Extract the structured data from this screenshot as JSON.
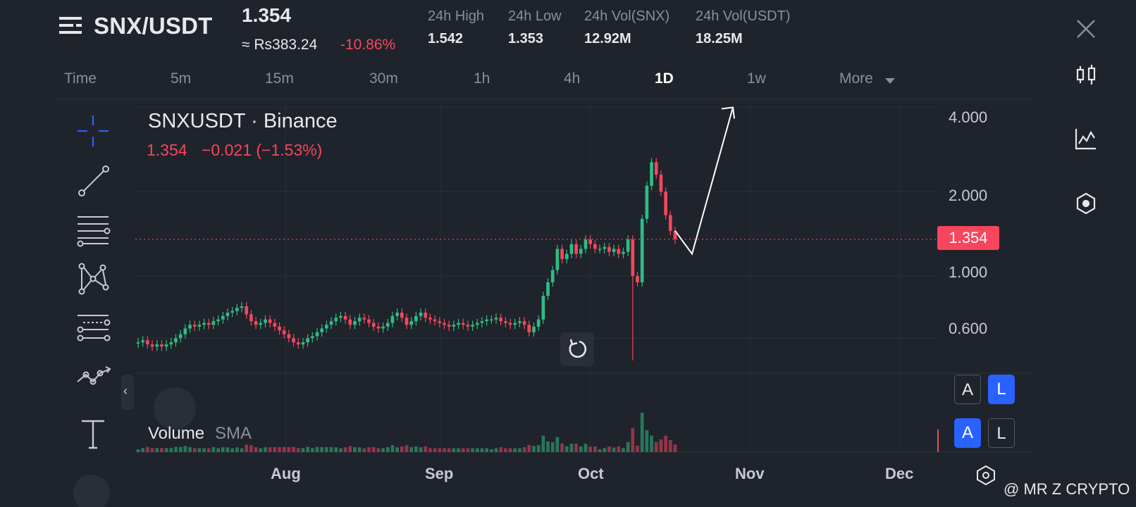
{
  "header": {
    "pair": "SNX/USDT",
    "last_price": "1.354",
    "approx_value": "≈ Rs383.24",
    "change_percent": "-10.86%",
    "stats": [
      {
        "label": "24h High",
        "value": "1.542"
      },
      {
        "label": "24h Low",
        "value": "1.353"
      },
      {
        "label": "24h Vol(SNX)",
        "value": "12.92M"
      },
      {
        "label": "24h Vol(USDT)",
        "value": "18.25M"
      }
    ]
  },
  "intervals": [
    "Time",
    "5m",
    "15m",
    "30m",
    "1h",
    "4h",
    "1D",
    "1w",
    "More"
  ],
  "active_interval": "1D",
  "toolbar": {
    "tools": [
      "crosshair-icon",
      "trend-line-icon",
      "horizontal-lines-icon",
      "pattern-icon",
      "fib-icon",
      "path-icon",
      "text-icon"
    ],
    "collapse": "‹"
  },
  "side_icons": [
    "close-icon",
    "candlestick-icon",
    "indicator-icon",
    "settings-hex-icon"
  ],
  "chart": {
    "symbol": "SNXUSDT · Binance",
    "price": "1.354",
    "change": "−0.021 (−1.53%)",
    "volume_label": "Volume",
    "sma_label": "SMA",
    "price_tag": "1.354",
    "auto_log_top": {
      "a": "A",
      "l": "L"
    },
    "auto_log_bottom": {
      "a": "A",
      "l": "L"
    }
  },
  "chart_data": {
    "type": "candlestick",
    "title": "SNXUSDT · Binance",
    "yscale": "log",
    "ylim": [
      0.45,
      4.3
    ],
    "y_ticks": [
      "4.000",
      "2.000",
      "1.000",
      "0.600"
    ],
    "x_ticks": [
      "Aug",
      "Sep",
      "Oct",
      "Nov",
      "Dec"
    ],
    "last_price": 1.354,
    "closes": [
      0.58,
      0.59,
      0.57,
      0.56,
      0.57,
      0.56,
      0.57,
      0.58,
      0.6,
      0.62,
      0.65,
      0.67,
      0.66,
      0.67,
      0.68,
      0.67,
      0.69,
      0.7,
      0.72,
      0.74,
      0.75,
      0.77,
      0.78,
      0.73,
      0.69,
      0.67,
      0.68,
      0.7,
      0.68,
      0.66,
      0.64,
      0.62,
      0.6,
      0.58,
      0.57,
      0.58,
      0.6,
      0.61,
      0.63,
      0.65,
      0.67,
      0.69,
      0.71,
      0.72,
      0.7,
      0.67,
      0.69,
      0.71,
      0.7,
      0.68,
      0.66,
      0.65,
      0.66,
      0.68,
      0.72,
      0.74,
      0.71,
      0.67,
      0.69,
      0.72,
      0.74,
      0.71,
      0.7,
      0.69,
      0.68,
      0.67,
      0.66,
      0.67,
      0.68,
      0.67,
      0.66,
      0.67,
      0.68,
      0.69,
      0.7,
      0.7,
      0.71,
      0.69,
      0.68,
      0.67,
      0.68,
      0.69,
      0.67,
      0.63,
      0.66,
      0.7,
      0.85,
      0.95,
      1.05,
      1.25,
      1.15,
      1.2,
      1.3,
      1.2,
      1.25,
      1.35,
      1.3,
      1.25,
      1.25,
      1.27,
      1.22,
      1.25,
      1.2,
      1.22,
      1.35,
      1.0,
      0.95,
      1.6,
      2.1,
      2.55,
      2.3,
      2.0,
      1.65,
      1.45,
      1.354
    ],
    "arrow_annotation": [
      [
        1.45,
        1.2
      ],
      [
        4.0
      ]
    ]
  },
  "watermark": "@ MR Z CRYPTO"
}
